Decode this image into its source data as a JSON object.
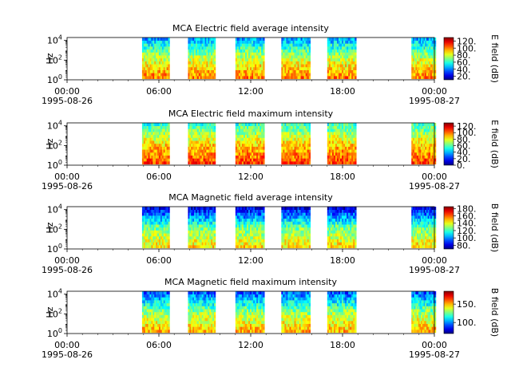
{
  "chart_data": [
    {
      "type": "heatmap",
      "title": "MCA  Electric field average intensity",
      "ylabel": "Hz",
      "colorbar_label": "E field (dB)",
      "colorbar_ticks": [
        "20.",
        "40.",
        "60.",
        "80.",
        "100.",
        "120."
      ],
      "colorbar_range": [
        10,
        130
      ],
      "y_ticks": [
        {
          "label": "10",
          "exp": "0"
        },
        {
          "label": "10",
          "exp": "2"
        },
        {
          "label": "10",
          "exp": "4"
        }
      ],
      "x_ticks": [
        {
          "time": "00:00",
          "date": "1995-08-26"
        },
        {
          "time": "06:00",
          "date": ""
        },
        {
          "time": "12:00",
          "date": ""
        },
        {
          "time": "18:00",
          "date": ""
        },
        {
          "time": "00:00",
          "date": "1995-08-27"
        }
      ],
      "xlim": [
        "1995-08-26 00:00",
        "1995-08-27 00:00"
      ],
      "ylim_hz": [
        1,
        20000
      ],
      "log_y": true,
      "grid": false,
      "data_segments_ut_hours": [
        [
          4.9,
          6.7
        ],
        [
          7.9,
          9.7
        ],
        [
          11.0,
          12.9
        ],
        [
          14.0,
          15.9
        ],
        [
          17.0,
          18.9
        ],
        [
          22.5,
          24.1
        ]
      ],
      "intensity_profile": {
        "low_freq": 100,
        "mid_freq": 78,
        "high_freq": 45
      }
    },
    {
      "type": "heatmap",
      "title": "MCA  Electric field maximum intensity",
      "ylabel": "Hz",
      "colorbar_label": "E field (dB)",
      "colorbar_ticks": [
        "0.",
        "20.",
        "40.",
        "60.",
        "80.",
        "100.",
        "120."
      ],
      "colorbar_range": [
        0,
        130
      ],
      "y_ticks": [
        {
          "label": "10",
          "exp": "0"
        },
        {
          "label": "10",
          "exp": "2"
        },
        {
          "label": "10",
          "exp": "4"
        }
      ],
      "x_ticks": [
        {
          "time": "00:00",
          "date": "1995-08-26"
        },
        {
          "time": "06:00",
          "date": ""
        },
        {
          "time": "12:00",
          "date": ""
        },
        {
          "time": "18:00",
          "date": ""
        },
        {
          "time": "00:00",
          "date": "1995-08-27"
        }
      ],
      "xlim": [
        "1995-08-26 00:00",
        "1995-08-27 00:00"
      ],
      "ylim_hz": [
        1,
        20000
      ],
      "log_y": true,
      "grid": false,
      "data_segments_ut_hours": [
        [
          4.9,
          6.7
        ],
        [
          7.9,
          9.7
        ],
        [
          11.0,
          12.9
        ],
        [
          14.0,
          15.9
        ],
        [
          17.0,
          18.9
        ],
        [
          22.5,
          24.1
        ]
      ],
      "intensity_profile": {
        "low_freq": 105,
        "mid_freq": 85,
        "high_freq": 55
      }
    },
    {
      "type": "heatmap",
      "title": "MCA  Magnetic field average intensity",
      "ylabel": "Hz",
      "colorbar_label": "B field (dB)",
      "colorbar_ticks": [
        "80.",
        "100.",
        "120.",
        "140.",
        "160.",
        "180."
      ],
      "colorbar_range": [
        70,
        185
      ],
      "y_ticks": [
        {
          "label": "10",
          "exp": "0"
        },
        {
          "label": "10",
          "exp": "2"
        },
        {
          "label": "10",
          "exp": "4"
        }
      ],
      "x_ticks": [
        {
          "time": "00:00",
          "date": "1995-08-26"
        },
        {
          "time": "06:00",
          "date": ""
        },
        {
          "time": "12:00",
          "date": ""
        },
        {
          "time": "18:00",
          "date": ""
        },
        {
          "time": "00:00",
          "date": "1995-08-27"
        }
      ],
      "xlim": [
        "1995-08-26 00:00",
        "1995-08-27 00:00"
      ],
      "ylim_hz": [
        1,
        20000
      ],
      "log_y": true,
      "grid": false,
      "data_segments_ut_hours": [
        [
          4.9,
          6.7
        ],
        [
          7.9,
          9.7
        ],
        [
          11.0,
          12.9
        ],
        [
          14.0,
          15.9
        ],
        [
          17.0,
          18.9
        ],
        [
          22.5,
          24.1
        ]
      ],
      "intensity_profile": {
        "low_freq": 145,
        "mid_freq": 125,
        "high_freq": 82
      }
    },
    {
      "type": "heatmap",
      "title": "MCA  Magnetic field maximum intensity",
      "ylabel": "Hz",
      "colorbar_label": "B field (dB)",
      "colorbar_ticks": [
        "100.",
        "150."
      ],
      "colorbar_range": [
        70,
        185
      ],
      "y_ticks": [
        {
          "label": "10",
          "exp": "0"
        },
        {
          "label": "10",
          "exp": "2"
        },
        {
          "label": "10",
          "exp": "4"
        }
      ],
      "x_ticks": [
        {
          "time": "00:00",
          "date": "1995-08-26"
        },
        {
          "time": "06:00",
          "date": ""
        },
        {
          "time": "12:00",
          "date": ""
        },
        {
          "time": "18:00",
          "date": ""
        },
        {
          "time": "00:00",
          "date": "1995-08-27"
        }
      ],
      "xlim": [
        "1995-08-26 00:00",
        "1995-08-27 00:00"
      ],
      "ylim_hz": [
        1,
        20000
      ],
      "log_y": true,
      "grid": false,
      "data_segments_ut_hours": [
        [
          4.9,
          6.7
        ],
        [
          7.9,
          9.7
        ],
        [
          11.0,
          12.9
        ],
        [
          14.0,
          15.9
        ],
        [
          17.0,
          18.9
        ],
        [
          22.5,
          24.1
        ]
      ],
      "intensity_profile": {
        "low_freq": 150,
        "mid_freq": 130,
        "high_freq": 95
      }
    }
  ]
}
